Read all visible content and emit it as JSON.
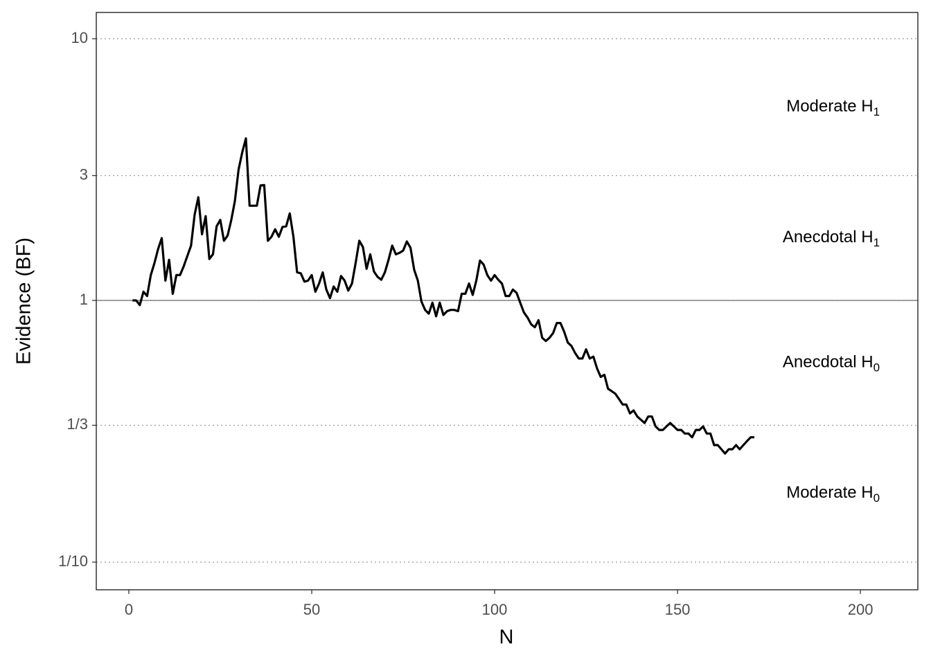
{
  "chart_data": {
    "type": "line",
    "x_label": "N",
    "y_label": "Evidence (BF)",
    "x": [
      1,
      2,
      3,
      4,
      5,
      6,
      7,
      8,
      9,
      10,
      11,
      12,
      13,
      14,
      15,
      16,
      17,
      18,
      19,
      20,
      21,
      22,
      23,
      24,
      25,
      26,
      27,
      28,
      29,
      30,
      31,
      32,
      33,
      34,
      35,
      36,
      37,
      38,
      39,
      40,
      41,
      42,
      43,
      44,
      45,
      46,
      47,
      48,
      49,
      50,
      51,
      52,
      53,
      54,
      55,
      56,
      57,
      58,
      59,
      60,
      61,
      62,
      63,
      64,
      65,
      66,
      67,
      68,
      69,
      70,
      71,
      72,
      73,
      74,
      75,
      76,
      77,
      78,
      79,
      80,
      81,
      82,
      83,
      84,
      85,
      86,
      87,
      88,
      89,
      90,
      91,
      92,
      93,
      94,
      95,
      96,
      97,
      98,
      99,
      100,
      101,
      102,
      103,
      104,
      105,
      106,
      107,
      108,
      109,
      110,
      111,
      112,
      113,
      114,
      115,
      116,
      117,
      118,
      119,
      120,
      121,
      122,
      123,
      124,
      125,
      126,
      127,
      128,
      129,
      130,
      131,
      132,
      133,
      134,
      135,
      136,
      137,
      138,
      139,
      140,
      141,
      142,
      143,
      144,
      145,
      146,
      147,
      148,
      149,
      150,
      151,
      152,
      153,
      154,
      155,
      156,
      157,
      158,
      159,
      160,
      161,
      162,
      163,
      164,
      165,
      166,
      167,
      168,
      169,
      170,
      171
    ],
    "values": [
      1.0,
      1.0,
      0.96,
      1.08,
      1.04,
      1.25,
      1.39,
      1.57,
      1.73,
      1.19,
      1.43,
      1.06,
      1.25,
      1.25,
      1.35,
      1.48,
      1.62,
      2.13,
      2.48,
      1.79,
      2.1,
      1.44,
      1.5,
      1.92,
      2.03,
      1.69,
      1.77,
      2.03,
      2.4,
      3.16,
      3.68,
      4.16,
      2.3,
      2.3,
      2.3,
      2.75,
      2.76,
      1.69,
      1.75,
      1.87,
      1.75,
      1.91,
      1.92,
      2.15,
      1.75,
      1.28,
      1.27,
      1.18,
      1.19,
      1.25,
      1.08,
      1.16,
      1.28,
      1.1,
      1.02,
      1.13,
      1.08,
      1.24,
      1.19,
      1.09,
      1.16,
      1.39,
      1.69,
      1.6,
      1.32,
      1.5,
      1.29,
      1.23,
      1.2,
      1.28,
      1.43,
      1.62,
      1.5,
      1.52,
      1.55,
      1.68,
      1.59,
      1.31,
      1.19,
      0.99,
      0.92,
      0.89,
      0.98,
      0.87,
      0.98,
      0.88,
      0.91,
      0.92,
      0.92,
      0.91,
      1.06,
      1.06,
      1.16,
      1.05,
      1.19,
      1.42,
      1.37,
      1.25,
      1.19,
      1.25,
      1.2,
      1.16,
      1.04,
      1.04,
      1.1,
      1.07,
      0.98,
      0.9,
      0.86,
      0.81,
      0.79,
      0.84,
      0.72,
      0.7,
      0.72,
      0.75,
      0.82,
      0.82,
      0.76,
      0.69,
      0.67,
      0.63,
      0.6,
      0.6,
      0.65,
      0.6,
      0.61,
      0.55,
      0.51,
      0.52,
      0.46,
      0.45,
      0.44,
      0.42,
      0.4,
      0.4,
      0.37,
      0.38,
      0.36,
      0.35,
      0.34,
      0.36,
      0.36,
      0.33,
      0.32,
      0.32,
      0.33,
      0.34,
      0.33,
      0.32,
      0.32,
      0.31,
      0.31,
      0.3,
      0.32,
      0.32,
      0.33,
      0.31,
      0.31,
      0.28,
      0.28,
      0.27,
      0.26,
      0.27,
      0.27,
      0.28,
      0.27,
      0.28,
      0.29,
      0.3,
      0.3
    ],
    "color": "#000000",
    "xlim": [
      -8.9,
      215.7
    ],
    "xticks": [
      0,
      50,
      100,
      150,
      200
    ],
    "ylim": [
      0.0784,
      12.6
    ],
    "log_y": true,
    "yticks": [
      {
        "value": 0.1,
        "label": "1/10"
      },
      {
        "value": 0.3333,
        "label": "1/3"
      },
      1,
      3,
      10
    ],
    "hline": 1,
    "annotations": [
      {
        "text": "Moderate H",
        "sub": "1",
        "x": 205.3,
        "y": 5.477
      },
      {
        "text": "Anecdotal H",
        "sub": "1",
        "x": 205.3,
        "y": 1.732
      },
      {
        "text": "Anecdotal H",
        "sub": "0",
        "x": 205.3,
        "y": 0.577
      },
      {
        "text": "Moderate H",
        "sub": "0",
        "x": 205.3,
        "y": 0.183
      }
    ]
  }
}
